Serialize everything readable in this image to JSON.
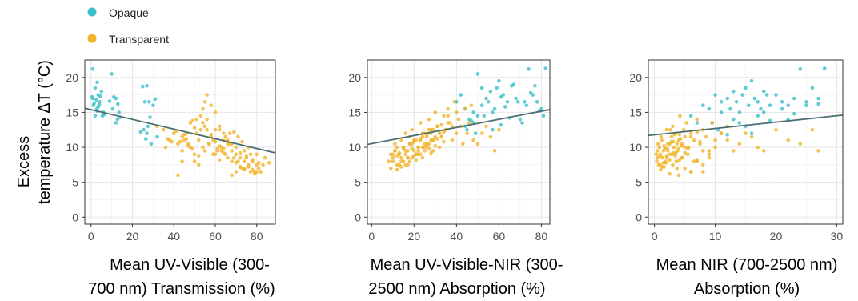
{
  "legend": [
    {
      "name": "Opaque",
      "color": "#3bbfcb"
    },
    {
      "name": "Transparent",
      "color": "#f0b429"
    }
  ],
  "ylabel": [
    "Excess",
    "temperature ΔT (°C)"
  ],
  "trend_color": "#4a6f72",
  "chart_data": [
    {
      "type": "scatter",
      "xlabel": [
        "Mean UV-Visible (300-",
        "700 nm) Transmission (%)"
      ],
      "xlim": [
        -3,
        89
      ],
      "ylim": [
        -1,
        22.5
      ],
      "xticks": [
        0,
        20,
        40,
        60,
        80
      ],
      "yticks": [
        0,
        5,
        10,
        15,
        20
      ],
      "grid": true,
      "trend": {
        "x": [
          -3,
          89
        ],
        "y": [
          15.6,
          9.2
        ]
      },
      "series": [
        {
          "name": "Opaque",
          "x": [
            0.8,
            0.8,
            1.2,
            2.0,
            2.5,
            3.5,
            3.0,
            2.0,
            1.5,
            0.5,
            4.0,
            5.0,
            4.5,
            6.0,
            5.5,
            3.0,
            4.2,
            10.0,
            12.0,
            13.0,
            11.0,
            10.5,
            13.5,
            12.8,
            14.0,
            12.0,
            27.0,
            25.0,
            26.0,
            28.0,
            30.0,
            31.0,
            28.5,
            27.5,
            24.0,
            25.5,
            27.0,
            26.5,
            29.0,
            32.0,
            3.5,
            6.5,
            9.0,
            2.8
          ],
          "y": [
            21.2,
            17.0,
            16.0,
            18.5,
            16.8,
            17.5,
            15.2,
            14.5,
            16.3,
            17.2,
            16.1,
            18.0,
            17.3,
            15.0,
            14.5,
            19.3,
            16.5,
            20.5,
            17.0,
            16.2,
            17.2,
            15.5,
            15.0,
            14.0,
            14.3,
            13.5,
            18.8,
            18.7,
            16.5,
            16.5,
            16.0,
            16.9,
            14.3,
            13.0,
            12.2,
            12.5,
            12.0,
            11.2,
            10.5,
            11.5,
            15.8,
            14.7,
            16.6,
            15.5
          ]
        },
        {
          "name": "Transparent",
          "x": [
            32.0,
            35.0,
            38.0,
            40.0,
            42.0,
            44.0,
            46.0,
            48.0,
            50.0,
            52.0,
            54.0,
            56.0,
            58.0,
            60.0,
            62.0,
            64.0,
            66.0,
            68.0,
            70.0,
            72.0,
            74.0,
            76.0,
            78.0,
            80.0,
            82.0,
            84.0,
            86.0,
            43.0,
            45.0,
            47.0,
            49.0,
            51.0,
            53.0,
            55.0,
            57.0,
            59.0,
            61.0,
            63.0,
            65.0,
            67.0,
            69.0,
            71.0,
            73.0,
            75.0,
            77.0,
            79.0,
            81.0,
            83.0,
            44.0,
            46.0,
            48.0,
            50.0,
            52.0,
            54.0,
            56.0,
            58.0,
            60.0,
            62.0,
            64.0,
            66.0,
            68.0,
            70.0,
            72.0,
            74.0,
            76.0,
            78.0,
            80.0,
            50.0,
            52.0,
            55.0,
            57.0,
            59.0,
            61.0,
            63.0,
            65.0,
            67.0,
            69.0,
            71.0,
            73.0,
            75.0,
            77.0,
            79.0,
            81.0,
            58.0,
            60.0,
            62.0,
            64.0,
            66.0,
            68.0,
            70.0,
            72.0,
            74.0,
            76.0,
            78.0,
            80.0,
            54.0,
            56.0,
            53.0,
            55.0,
            49.0,
            51.0,
            45.0,
            47.0,
            41.0,
            37.0,
            39.0,
            36.0,
            42.0,
            44.0,
            60.0,
            62.0,
            64.0,
            66.0,
            68.0,
            70.0,
            72.0,
            74.0
          ],
          "y": [
            13.0,
            12.5,
            11.0,
            12.0,
            10.5,
            11.5,
            12.0,
            13.5,
            12.8,
            11.0,
            10.0,
            14.0,
            16.0,
            15.0,
            12.5,
            11.0,
            10.5,
            9.5,
            9.0,
            8.5,
            9.5,
            10.0,
            8.0,
            7.5,
            6.5,
            8.5,
            7.8,
            10.8,
            11.0,
            10.2,
            9.8,
            12.0,
            12.5,
            13.0,
            10.5,
            9.0,
            9.5,
            10.0,
            11.5,
            10.5,
            8.5,
            8.0,
            7.0,
            8.8,
            9.0,
            6.5,
            7.0,
            7.5,
            9.5,
            11.2,
            10.0,
            9.0,
            8.8,
            13.5,
            12.5,
            11.8,
            10.8,
            10.2,
            9.2,
            8.5,
            8.0,
            7.8,
            7.2,
            6.8,
            7.5,
            8.2,
            9.0,
            8.0,
            7.5,
            9.5,
            10.5,
            11.0,
            9.8,
            9.5,
            9.0,
            12.0,
            12.2,
            11.5,
            10.8,
            8.5,
            6.5,
            6.2,
            7.8,
            11.5,
            12.5,
            13.0,
            12.0,
            11.0,
            10.5,
            10.0,
            9.2,
            8.0,
            7.2,
            6.8,
            6.5,
            15.5,
            17.5,
            14.5,
            16.5,
            13.8,
            14.0,
            11.8,
            10.5,
            12.3,
            11.2,
            10.8,
            10.0,
            6.0,
            8.0,
            9.0,
            8.2,
            9.8,
            10.8,
            6.0,
            6.5,
            7.2,
            7.0
          ]
        }
      ]
    },
    {
      "type": "scatter",
      "xlabel": [
        "Mean UV-Visible-NIR (300-",
        "2500 nm) Absorption (%)"
      ],
      "xlim": [
        -2,
        84
      ],
      "ylim": [
        -1,
        22.5
      ],
      "xticks": [
        0,
        20,
        40,
        60,
        80
      ],
      "yticks": [
        0,
        5,
        10,
        15,
        20
      ],
      "grid": true,
      "trend": {
        "x": [
          -2,
          84
        ],
        "y": [
          10.4,
          15.4
        ]
      },
      "series": [
        {
          "name": "Opaque",
          "x": [
            40,
            42,
            44,
            46,
            48,
            50,
            52,
            54,
            56,
            58,
            60,
            62,
            64,
            66,
            68,
            70,
            72,
            74,
            76,
            78,
            80,
            82,
            44,
            48,
            50,
            52,
            55,
            57,
            59,
            61,
            63,
            65,
            67,
            69,
            71,
            73,
            75,
            77,
            79,
            81,
            45,
            47,
            49,
            53,
            57,
            61
          ],
          "y": [
            16.5,
            17.5,
            15.5,
            14.0,
            13.5,
            20.5,
            18.5,
            17.0,
            18.0,
            15.5,
            19.5,
            17.5,
            16.5,
            18.8,
            17.0,
            14.0,
            16.5,
            21.2,
            17.5,
            16.5,
            15.5,
            21.3,
            13.0,
            15.0,
            14.5,
            16.0,
            16.5,
            15.0,
            18.5,
            17.2,
            15.8,
            14.2,
            19.0,
            16.5,
            13.5,
            16.0,
            17.8,
            18.8,
            15.2,
            14.5,
            12.5,
            13.8,
            12.0,
            14.5,
            12.5,
            13.2
          ]
        },
        {
          "name": "Transparent",
          "x": [
            8,
            9,
            10,
            11,
            12,
            13,
            14,
            15,
            16,
            17,
            18,
            19,
            20,
            21,
            22,
            23,
            24,
            25,
            26,
            27,
            28,
            29,
            30,
            31,
            32,
            33,
            34,
            35,
            36,
            37,
            38,
            39,
            40,
            41,
            42,
            43,
            44,
            45,
            46,
            47,
            48,
            50,
            52,
            54,
            56,
            58,
            60,
            9,
            10,
            11,
            12,
            13,
            14,
            15,
            16,
            17,
            18,
            19,
            20,
            21,
            22,
            23,
            24,
            25,
            26,
            27,
            28,
            29,
            30,
            31,
            32,
            33,
            34,
            35,
            36,
            10,
            11,
            12,
            13,
            14,
            15,
            16,
            17,
            18,
            19,
            20,
            21,
            22,
            23,
            24,
            25,
            26,
            27,
            28,
            29,
            12,
            14,
            16,
            18,
            20,
            22,
            24,
            26,
            28,
            30,
            32,
            34,
            36,
            38,
            40,
            15,
            17,
            19,
            21,
            23,
            25,
            27,
            29,
            31,
            33
          ],
          "y": [
            8.0,
            9.0,
            8.5,
            9.5,
            10.0,
            7.5,
            11.0,
            8.0,
            12.0,
            9.5,
            10.5,
            12.5,
            11.0,
            9.0,
            10.0,
            13.5,
            11.5,
            12.0,
            10.5,
            14.0,
            11.0,
            12.5,
            15.0,
            13.0,
            12.0,
            11.5,
            14.5,
            12.5,
            15.5,
            13.5,
            11.0,
            16.5,
            12.0,
            14.0,
            13.0,
            10.5,
            15.5,
            12.0,
            13.5,
            16.0,
            11.0,
            10.5,
            12.0,
            13.0,
            11.5,
            9.5,
            12.5,
            7.0,
            8.0,
            9.5,
            7.5,
            9.0,
            8.5,
            10.0,
            9.0,
            7.5,
            10.5,
            8.5,
            9.5,
            11.0,
            10.0,
            9.0,
            12.0,
            10.5,
            11.5,
            9.8,
            12.5,
            11.0,
            10.2,
            13.0,
            12.0,
            11.5,
            10.8,
            12.5,
            13.5,
            9.0,
            10.5,
            8.8,
            9.2,
            8.0,
            10.0,
            9.5,
            8.5,
            11.5,
            9.8,
            10.8,
            8.2,
            9.0,
            11.2,
            10.0,
            9.5,
            11.8,
            10.5,
            12.0,
            11.0,
            6.8,
            7.2,
            7.5,
            8.0,
            8.8,
            9.5,
            8.5,
            10.2,
            9.2,
            11.5,
            10.0,
            12.2,
            14.5,
            13.0,
            15.0,
            9.8,
            8.5,
            10.5,
            9.0,
            11.0,
            10.0,
            12.5,
            9.5,
            11.2,
            13.2
          ]
        }
      ]
    },
    {
      "type": "scatter",
      "xlabel": [
        "Mean NIR (700-2500 nm)",
        "Absorption (%)"
      ],
      "xlim": [
        -1,
        31
      ],
      "ylim": [
        -1,
        22.5
      ],
      "xticks": [
        0,
        10,
        20,
        30
      ],
      "yticks": [
        0,
        5,
        10,
        15,
        20
      ],
      "grid": true,
      "trend": {
        "x": [
          -1,
          31
        ],
        "y": [
          11.7,
          14.6
        ]
      },
      "series": [
        {
          "name": "Opaque",
          "x": [
            6,
            7,
            8,
            9,
            10,
            11,
            12,
            12.5,
            13,
            13.5,
            14,
            14.5,
            15,
            15.5,
            16,
            16.5,
            17,
            17.5,
            18,
            18.5,
            19,
            20,
            21,
            22,
            23,
            24,
            25,
            26,
            27,
            28,
            9.5,
            11,
            13,
            15,
            17,
            19,
            21,
            23,
            25,
            27,
            10.5,
            12,
            14,
            16,
            18,
            22
          ],
          "y": [
            14.5,
            13.5,
            16.0,
            15.5,
            17.5,
            16.5,
            17.0,
            15.5,
            18.0,
            16.5,
            15.0,
            17.5,
            18.5,
            16.0,
            19.5,
            17.0,
            16.5,
            15.5,
            18.0,
            17.5,
            16.0,
            17.5,
            16.5,
            16.0,
            17.0,
            21.2,
            16.5,
            18.5,
            17.0,
            21.3,
            13.5,
            15.0,
            14.0,
            13.0,
            14.5,
            13.8,
            15.5,
            14.8,
            16.0,
            16.2,
            12.5,
            11.8,
            13.5,
            12.0,
            15.0,
            14.0
          ]
        },
        {
          "name": "Transparent",
          "x": [
            0.3,
            0.5,
            0.8,
            1.0,
            1.2,
            1.5,
            1.8,
            2.0,
            2.2,
            2.5,
            2.8,
            3.0,
            3.2,
            3.5,
            3.8,
            4.0,
            4.2,
            4.5,
            4.8,
            5.0,
            5.3,
            5.6,
            6.0,
            6.5,
            7.0,
            7.5,
            8.0,
            8.5,
            9.0,
            9.5,
            10,
            11,
            12,
            13,
            14,
            15,
            16,
            17,
            18,
            20,
            22,
            24,
            26,
            27,
            0.4,
            0.7,
            1.0,
            1.3,
            1.6,
            1.9,
            2.2,
            2.5,
            2.8,
            3.1,
            3.4,
            3.7,
            4.0,
            4.3,
            4.6,
            5.0,
            5.5,
            6.0,
            6.5,
            7.0,
            7.5,
            8.0,
            9.0,
            10,
            11,
            12,
            0.5,
            0.9,
            1.3,
            1.7,
            2.1,
            2.5,
            2.9,
            3.3,
            3.7,
            4.1,
            4.5,
            5.0,
            6.0,
            7.0,
            8.0,
            9.0,
            1.0,
            1.5,
            2.0,
            2.5,
            3.0,
            3.5,
            4.0,
            4.5,
            5.0,
            5.5,
            6.0,
            7.0,
            8.0,
            0.6,
            1.1,
            1.6,
            2.1,
            2.6,
            3.1,
            3.6,
            4.1
          ],
          "y": [
            9.0,
            8.5,
            10.0,
            7.5,
            11.0,
            9.5,
            8.0,
            12.5,
            10.5,
            9.0,
            11.5,
            13.0,
            10.0,
            12.0,
            9.5,
            11.0,
            14.5,
            10.5,
            12.5,
            11.5,
            13.5,
            10.0,
            12.0,
            11.0,
            14.0,
            10.5,
            12.5,
            11.5,
            9.0,
            13.5,
            10.0,
            12.0,
            11.0,
            9.5,
            10.5,
            12.0,
            11.5,
            10.0,
            9.5,
            12.5,
            11.0,
            10.5,
            12.5,
            9.5,
            8.0,
            7.5,
            9.0,
            8.5,
            10.2,
            7.8,
            9.5,
            8.2,
            10.8,
            9.2,
            8.8,
            10.5,
            9.8,
            11.2,
            8.5,
            10.0,
            9.0,
            11.5,
            8.0,
            12.2,
            10.8,
            9.5,
            8.5,
            11.0,
            12.0,
            13.0,
            9.5,
            8.8,
            7.2,
            9.8,
            8.5,
            10.5,
            9.0,
            11.8,
            7.0,
            8.2,
            10.2,
            9.2,
            6.5,
            8.0,
            7.5,
            9.5,
            6.8,
            7.8,
            8.8,
            6.2,
            7.5,
            9.2,
            6.0,
            8.5,
            7.0,
            9.8,
            6.5,
            8.2,
            6.5,
            10.5,
            11.5,
            7.2,
            9.8,
            12.5,
            10.8,
            8.0,
            11.8
          ]
        }
      ]
    }
  ]
}
